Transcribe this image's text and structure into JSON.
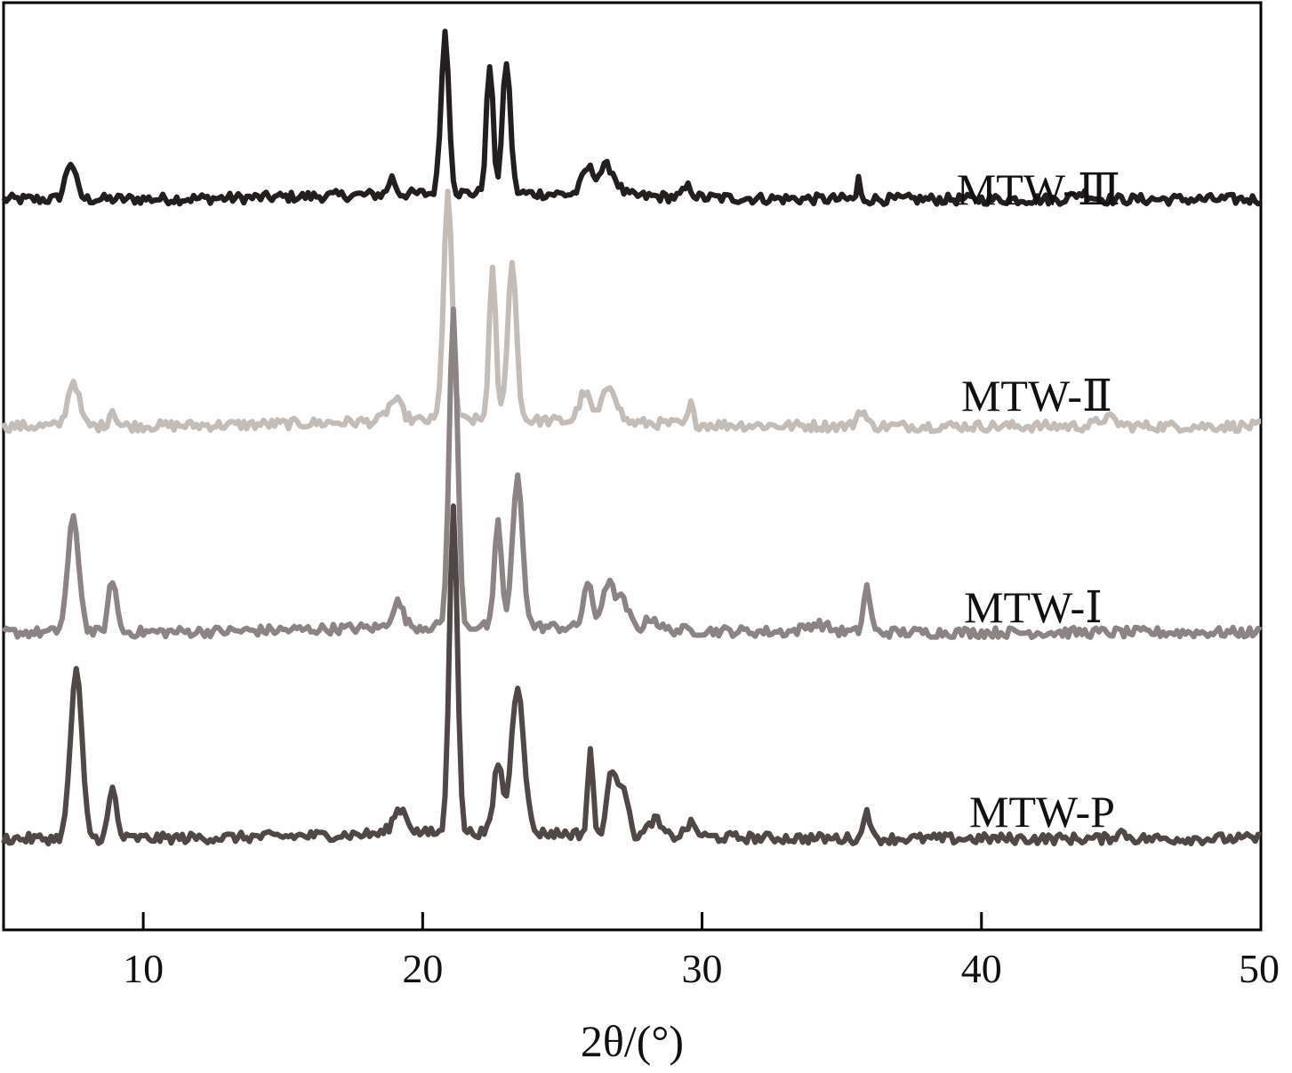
{
  "chart_data": {
    "type": "line",
    "xlabel": "2θ/(°)",
    "ylabel": "",
    "xlim": [
      5,
      50
    ],
    "xticks": [
      10,
      20,
      30,
      40,
      50
    ],
    "yticks": "none",
    "grid": false,
    "legend": "none (labels placed next to each curve)",
    "x_step": 0.1,
    "series": [
      {
        "name": "MTW-Ⅲ",
        "color": "#231f1f",
        "baseline": 3.1,
        "peaks": [
          [
            7.4,
            0.18,
            0.18
          ],
          [
            18.9,
            0.08,
            0.12
          ],
          [
            20.8,
            0.78,
            0.14
          ],
          [
            22.4,
            0.62,
            0.12
          ],
          [
            23.0,
            0.64,
            0.14
          ],
          [
            25.9,
            0.12,
            0.2
          ],
          [
            26.6,
            0.14,
            0.3
          ],
          [
            29.5,
            0.05,
            0.15
          ],
          [
            35.6,
            0.1,
            0.05
          ],
          [
            43.6,
            0.03,
            0.3
          ]
        ]
      },
      {
        "name": "MTW-Ⅱ",
        "color": "#c4bcb7",
        "baseline": 2.0,
        "peaks": [
          [
            7.5,
            0.22,
            0.2
          ],
          [
            8.9,
            0.08,
            0.12
          ],
          [
            19.0,
            0.1,
            0.25
          ],
          [
            20.9,
            1.1,
            0.15
          ],
          [
            22.5,
            0.72,
            0.12
          ],
          [
            23.2,
            0.76,
            0.16
          ],
          [
            25.8,
            0.14,
            0.2
          ],
          [
            26.7,
            0.18,
            0.25
          ],
          [
            29.6,
            0.1,
            0.08
          ],
          [
            35.7,
            0.08,
            0.15
          ],
          [
            44.5,
            0.04,
            0.3
          ]
        ]
      },
      {
        "name": "MTW-Ⅰ",
        "color": "#8c8484",
        "baseline": 1.0,
        "peaks": [
          [
            7.5,
            0.55,
            0.2
          ],
          [
            8.9,
            0.26,
            0.14
          ],
          [
            19.1,
            0.12,
            0.2
          ],
          [
            21.1,
            1.52,
            0.15
          ],
          [
            22.7,
            0.52,
            0.12
          ],
          [
            23.4,
            0.72,
            0.18
          ],
          [
            25.9,
            0.22,
            0.15
          ],
          [
            26.6,
            0.2,
            0.2
          ],
          [
            27.1,
            0.14,
            0.25
          ],
          [
            28.2,
            0.06,
            0.2
          ],
          [
            34.1,
            0.04,
            0.4
          ],
          [
            35.9,
            0.22,
            0.12
          ]
        ]
      },
      {
        "name": "MTW-P",
        "color": "#504847",
        "baseline": 0.0,
        "peaks": [
          [
            7.6,
            0.82,
            0.2
          ],
          [
            8.9,
            0.24,
            0.14
          ],
          [
            19.2,
            0.12,
            0.25
          ],
          [
            21.1,
            1.6,
            0.14
          ],
          [
            22.7,
            0.34,
            0.15
          ],
          [
            23.4,
            0.72,
            0.22
          ],
          [
            26.0,
            0.42,
            0.09
          ],
          [
            26.8,
            0.32,
            0.18
          ],
          [
            27.2,
            0.22,
            0.15
          ],
          [
            28.3,
            0.08,
            0.2
          ],
          [
            29.6,
            0.06,
            0.2
          ],
          [
            35.9,
            0.16,
            0.1
          ],
          [
            45.0,
            0.03,
            0.2
          ]
        ]
      }
    ]
  }
}
